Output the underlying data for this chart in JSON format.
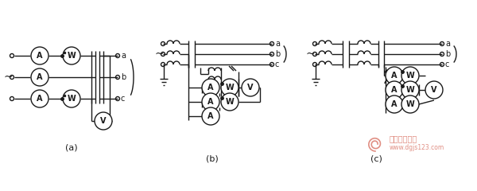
{
  "bg_color": "#ffffff",
  "line_color": "#1a1a1a",
  "title_a": "(a)",
  "title_b": "(b)",
  "title_c": "(c)",
  "label_a": "a",
  "label_b": "b",
  "label_c": "c",
  "label_tilde": "~",
  "meter_A": "A",
  "meter_W": "W",
  "meter_V": "V",
  "fig_width": 6.0,
  "fig_height": 2.4,
  "dpi": 100,
  "watermark_text": "电工技术之家",
  "watermark_url": "www.dgjs123.com",
  "watermark_color": "#d46050"
}
